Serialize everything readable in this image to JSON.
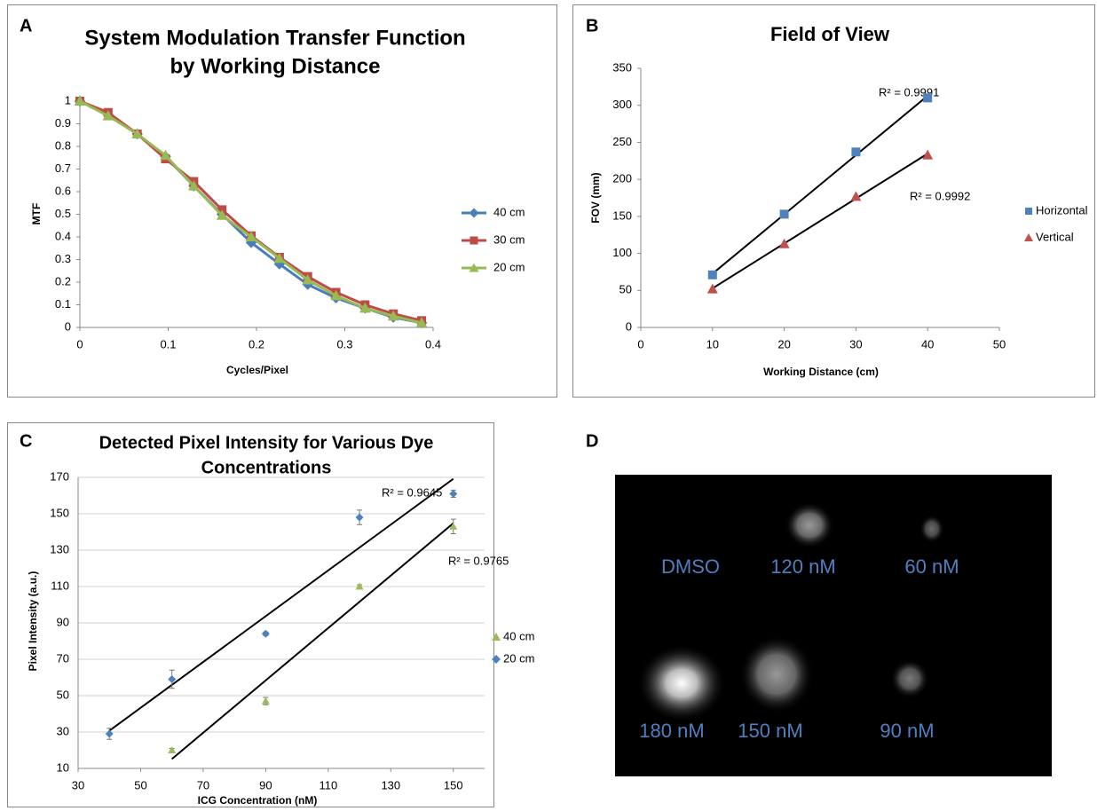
{
  "chart_data": [
    {
      "type": "line",
      "panel_label": "A",
      "title": [
        "System Modulation Transfer Function",
        "by Working Distance"
      ],
      "x_label": "Cycles/Pixel",
      "y_label": "MTF",
      "x": [
        0,
        0.032,
        0.065,
        0.097,
        0.129,
        0.161,
        0.194,
        0.226,
        0.258,
        0.29,
        0.323,
        0.355,
        0.387
      ],
      "series": [
        {
          "name": "40 cm",
          "color": "#4a7ebb",
          "marker": "diamond",
          "values": [
            1,
            0.94,
            0.855,
            0.755,
            0.625,
            0.5,
            0.375,
            0.28,
            0.19,
            0.13,
            0.085,
            0.045,
            0.02
          ]
        },
        {
          "name": "30 cm",
          "color": "#be4b48",
          "marker": "square",
          "values": [
            1,
            0.95,
            0.855,
            0.745,
            0.645,
            0.52,
            0.405,
            0.31,
            0.225,
            0.155,
            0.1,
            0.06,
            0.03
          ]
        },
        {
          "name": "20 cm",
          "color": "#98b954",
          "marker": "triangle",
          "values": [
            1,
            0.935,
            0.855,
            0.76,
            0.625,
            0.495,
            0.4,
            0.305,
            0.21,
            0.14,
            0.085,
            0.05,
            0.02
          ]
        }
      ],
      "xlim": [
        0,
        0.4
      ],
      "xticks": [
        0,
        0.1,
        0.2,
        0.3,
        0.4
      ],
      "ylim": [
        0,
        1
      ],
      "yticks": [
        0,
        0.1,
        0.2,
        0.3,
        0.4,
        0.5,
        0.6,
        0.7,
        0.8,
        0.9,
        1
      ],
      "grid": false,
      "legend": "right"
    },
    {
      "type": "scatter",
      "panel_label": "B",
      "title": [
        "Field of View"
      ],
      "x_label": "Working Distance (cm)",
      "y_label": "FOV (mm)",
      "series": [
        {
          "name": "Horizontal",
          "color": "#4f81bd",
          "marker": "square",
          "x": [
            10,
            20,
            30,
            40
          ],
          "values": [
            71,
            153,
            237,
            310
          ],
          "trendline_label": "R² = 0.9991"
        },
        {
          "name": "Vertical",
          "color": "#c0504d",
          "marker": "triangle",
          "x": [
            10,
            20,
            30,
            40
          ],
          "values": [
            52,
            113,
            177,
            233
          ],
          "trendline_label": "R² = 0.9992"
        }
      ],
      "xlim": [
        0,
        50
      ],
      "xticks": [
        0,
        10,
        20,
        30,
        40,
        50
      ],
      "ylim": [
        0,
        350
      ],
      "yticks": [
        0,
        50,
        100,
        150,
        200,
        250,
        300,
        350
      ],
      "grid": false,
      "legend": "right"
    },
    {
      "type": "scatter",
      "panel_label": "C",
      "title": [
        "Detected Pixel Intensity for Various Dye",
        "Concentrations"
      ],
      "x_label": "ICG Concentration (nM)",
      "y_label": "Pixel Intensity (a.u.)",
      "series": [
        {
          "name": "40 cm",
          "color": "#9bbb59",
          "marker": "triangle",
          "x": [
            60,
            90,
            120,
            150
          ],
          "values": [
            20,
            47,
            110,
            143
          ],
          "errors": [
            1,
            2,
            1,
            4
          ],
          "trendline_label": "R² = 0.9765"
        },
        {
          "name": "20 cm",
          "color": "#4f81bd",
          "marker": "diamond",
          "x": [
            40,
            60,
            90,
            120,
            150
          ],
          "values": [
            29,
            59,
            84,
            148,
            161
          ],
          "errors": [
            3,
            5,
            1,
            4,
            2
          ],
          "trendline_label": "R² = 0.9645"
        }
      ],
      "xlim": [
        30,
        160
      ],
      "xticks": [
        30,
        50,
        70,
        90,
        110,
        130,
        150
      ],
      "ylim": [
        10,
        170
      ],
      "yticks": [
        10,
        30,
        50,
        70,
        90,
        110,
        130,
        150,
        170
      ],
      "grid": true,
      "legend": "right"
    }
  ],
  "image_panel": {
    "panel_label": "D",
    "labels": [
      "DMSO",
      "120 nM",
      "60 nM",
      "180 nM",
      "150 nM",
      "90 nM"
    ]
  }
}
